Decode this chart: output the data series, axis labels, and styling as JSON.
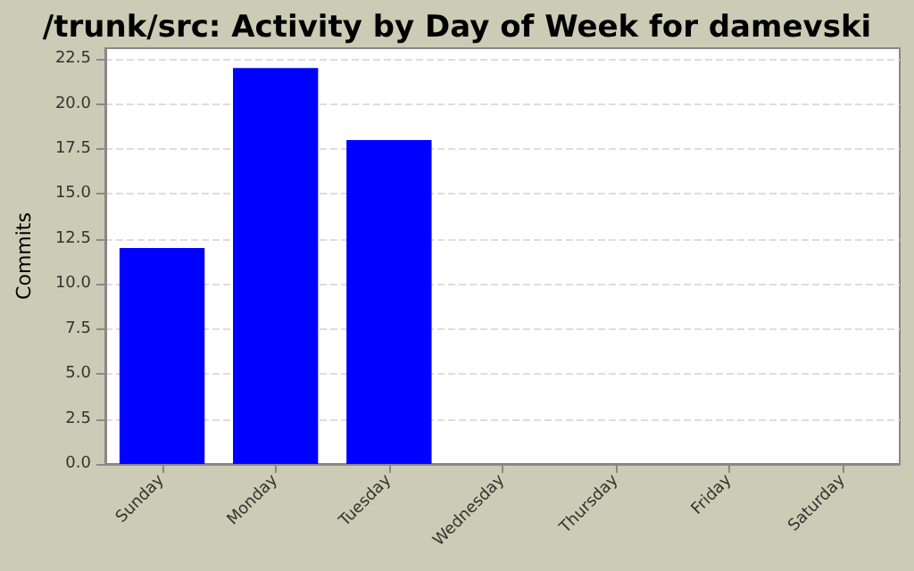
{
  "chart_data": {
    "type": "bar",
    "title": "/trunk/src: Activity by Day of Week for damevski",
    "ylabel": "Commits",
    "categories": [
      "Sunday",
      "Monday",
      "Tuesday",
      "Wednesday",
      "Thursday",
      "Friday",
      "Saturday"
    ],
    "values": [
      12,
      22,
      18,
      0,
      0,
      0,
      0
    ],
    "color": "#0000ff",
    "ylim": [
      0,
      23.1
    ],
    "yticks": [
      {
        "value": 0,
        "label": "0.0"
      },
      2.5,
      {
        "value": 5,
        "label": "5.0"
      },
      7.5,
      {
        "value": 10,
        "label": "10.0"
      },
      12.5,
      {
        "value": 15,
        "label": "15.0"
      },
      17.5,
      {
        "value": 20,
        "label": "20.0"
      },
      22.5
    ],
    "grid": "y"
  }
}
